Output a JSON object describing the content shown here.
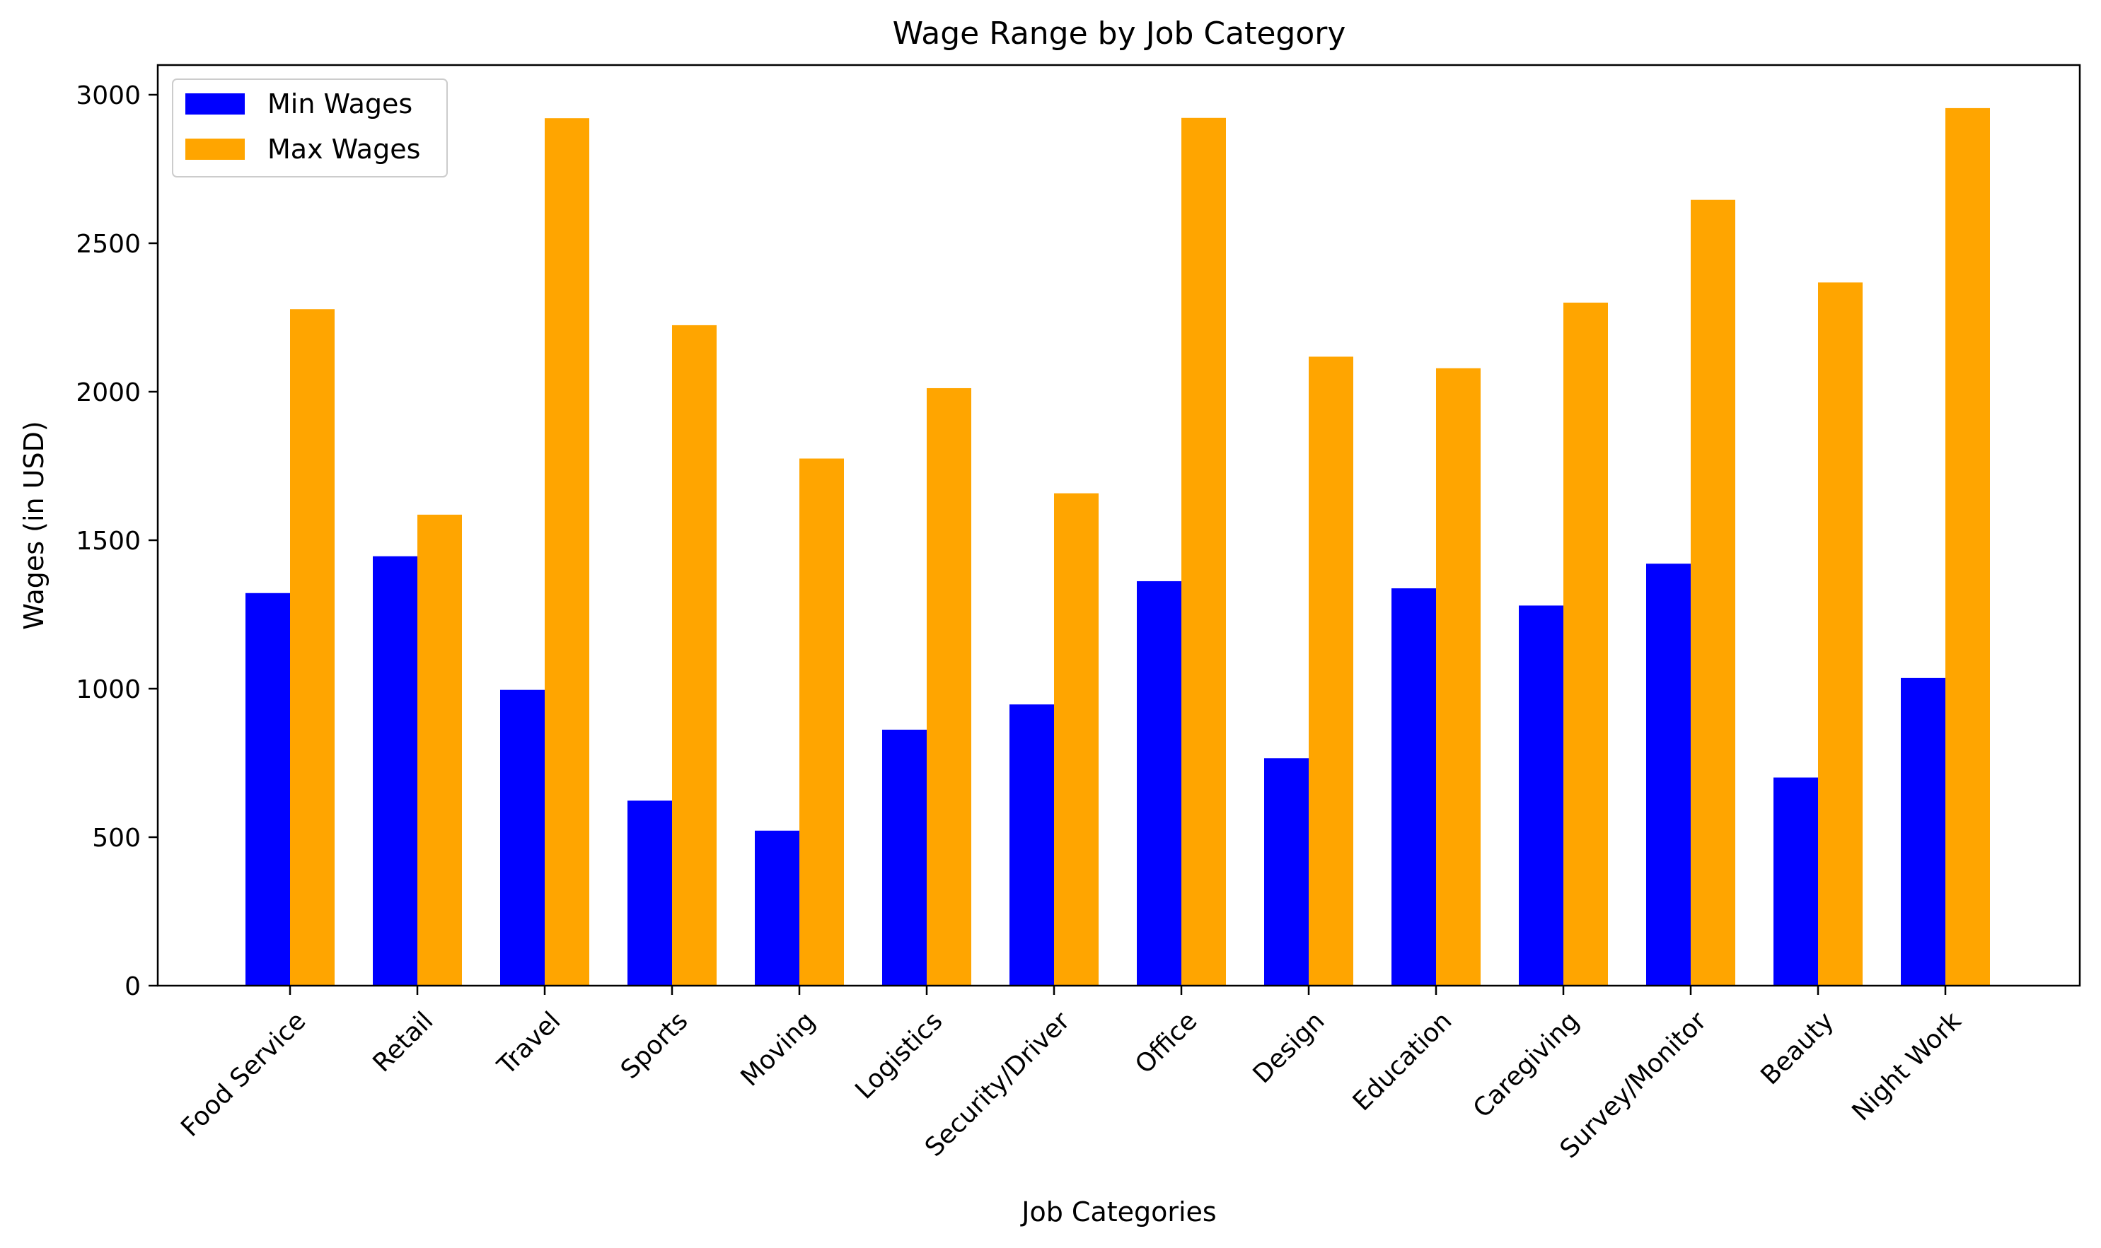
{
  "chart_data": {
    "type": "bar",
    "title": "Wage Range by Job Category",
    "xlabel": "Job Categories",
    "ylabel": "Wages (in USD)",
    "ylim": [
      0,
      3100
    ],
    "yticks": [
      0,
      500,
      1000,
      1500,
      2000,
      2500,
      3000
    ],
    "grid": false,
    "legend": "top-left",
    "categories": [
      "Food Service",
      "Retail",
      "Travel",
      "Sports",
      "Moving",
      "Logistics",
      "Security/Driver",
      "Office",
      "Design",
      "Education",
      "Caregiving",
      "Survey/Monitor",
      "Beauty",
      "Night Work"
    ],
    "series": [
      {
        "name": "Min Wages",
        "color": "#0000ff",
        "values": [
          1322,
          1446,
          996,
          623,
          522,
          862,
          947,
          1362,
          766,
          1338,
          1280,
          1421,
          701,
          1036
        ]
      },
      {
        "name": "Max Wages",
        "color": "#ffa500",
        "values": [
          2278,
          1586,
          2921,
          2224,
          1775,
          2012,
          1658,
          2922,
          2118,
          2079,
          2300,
          2646,
          2368,
          2955
        ]
      }
    ]
  }
}
